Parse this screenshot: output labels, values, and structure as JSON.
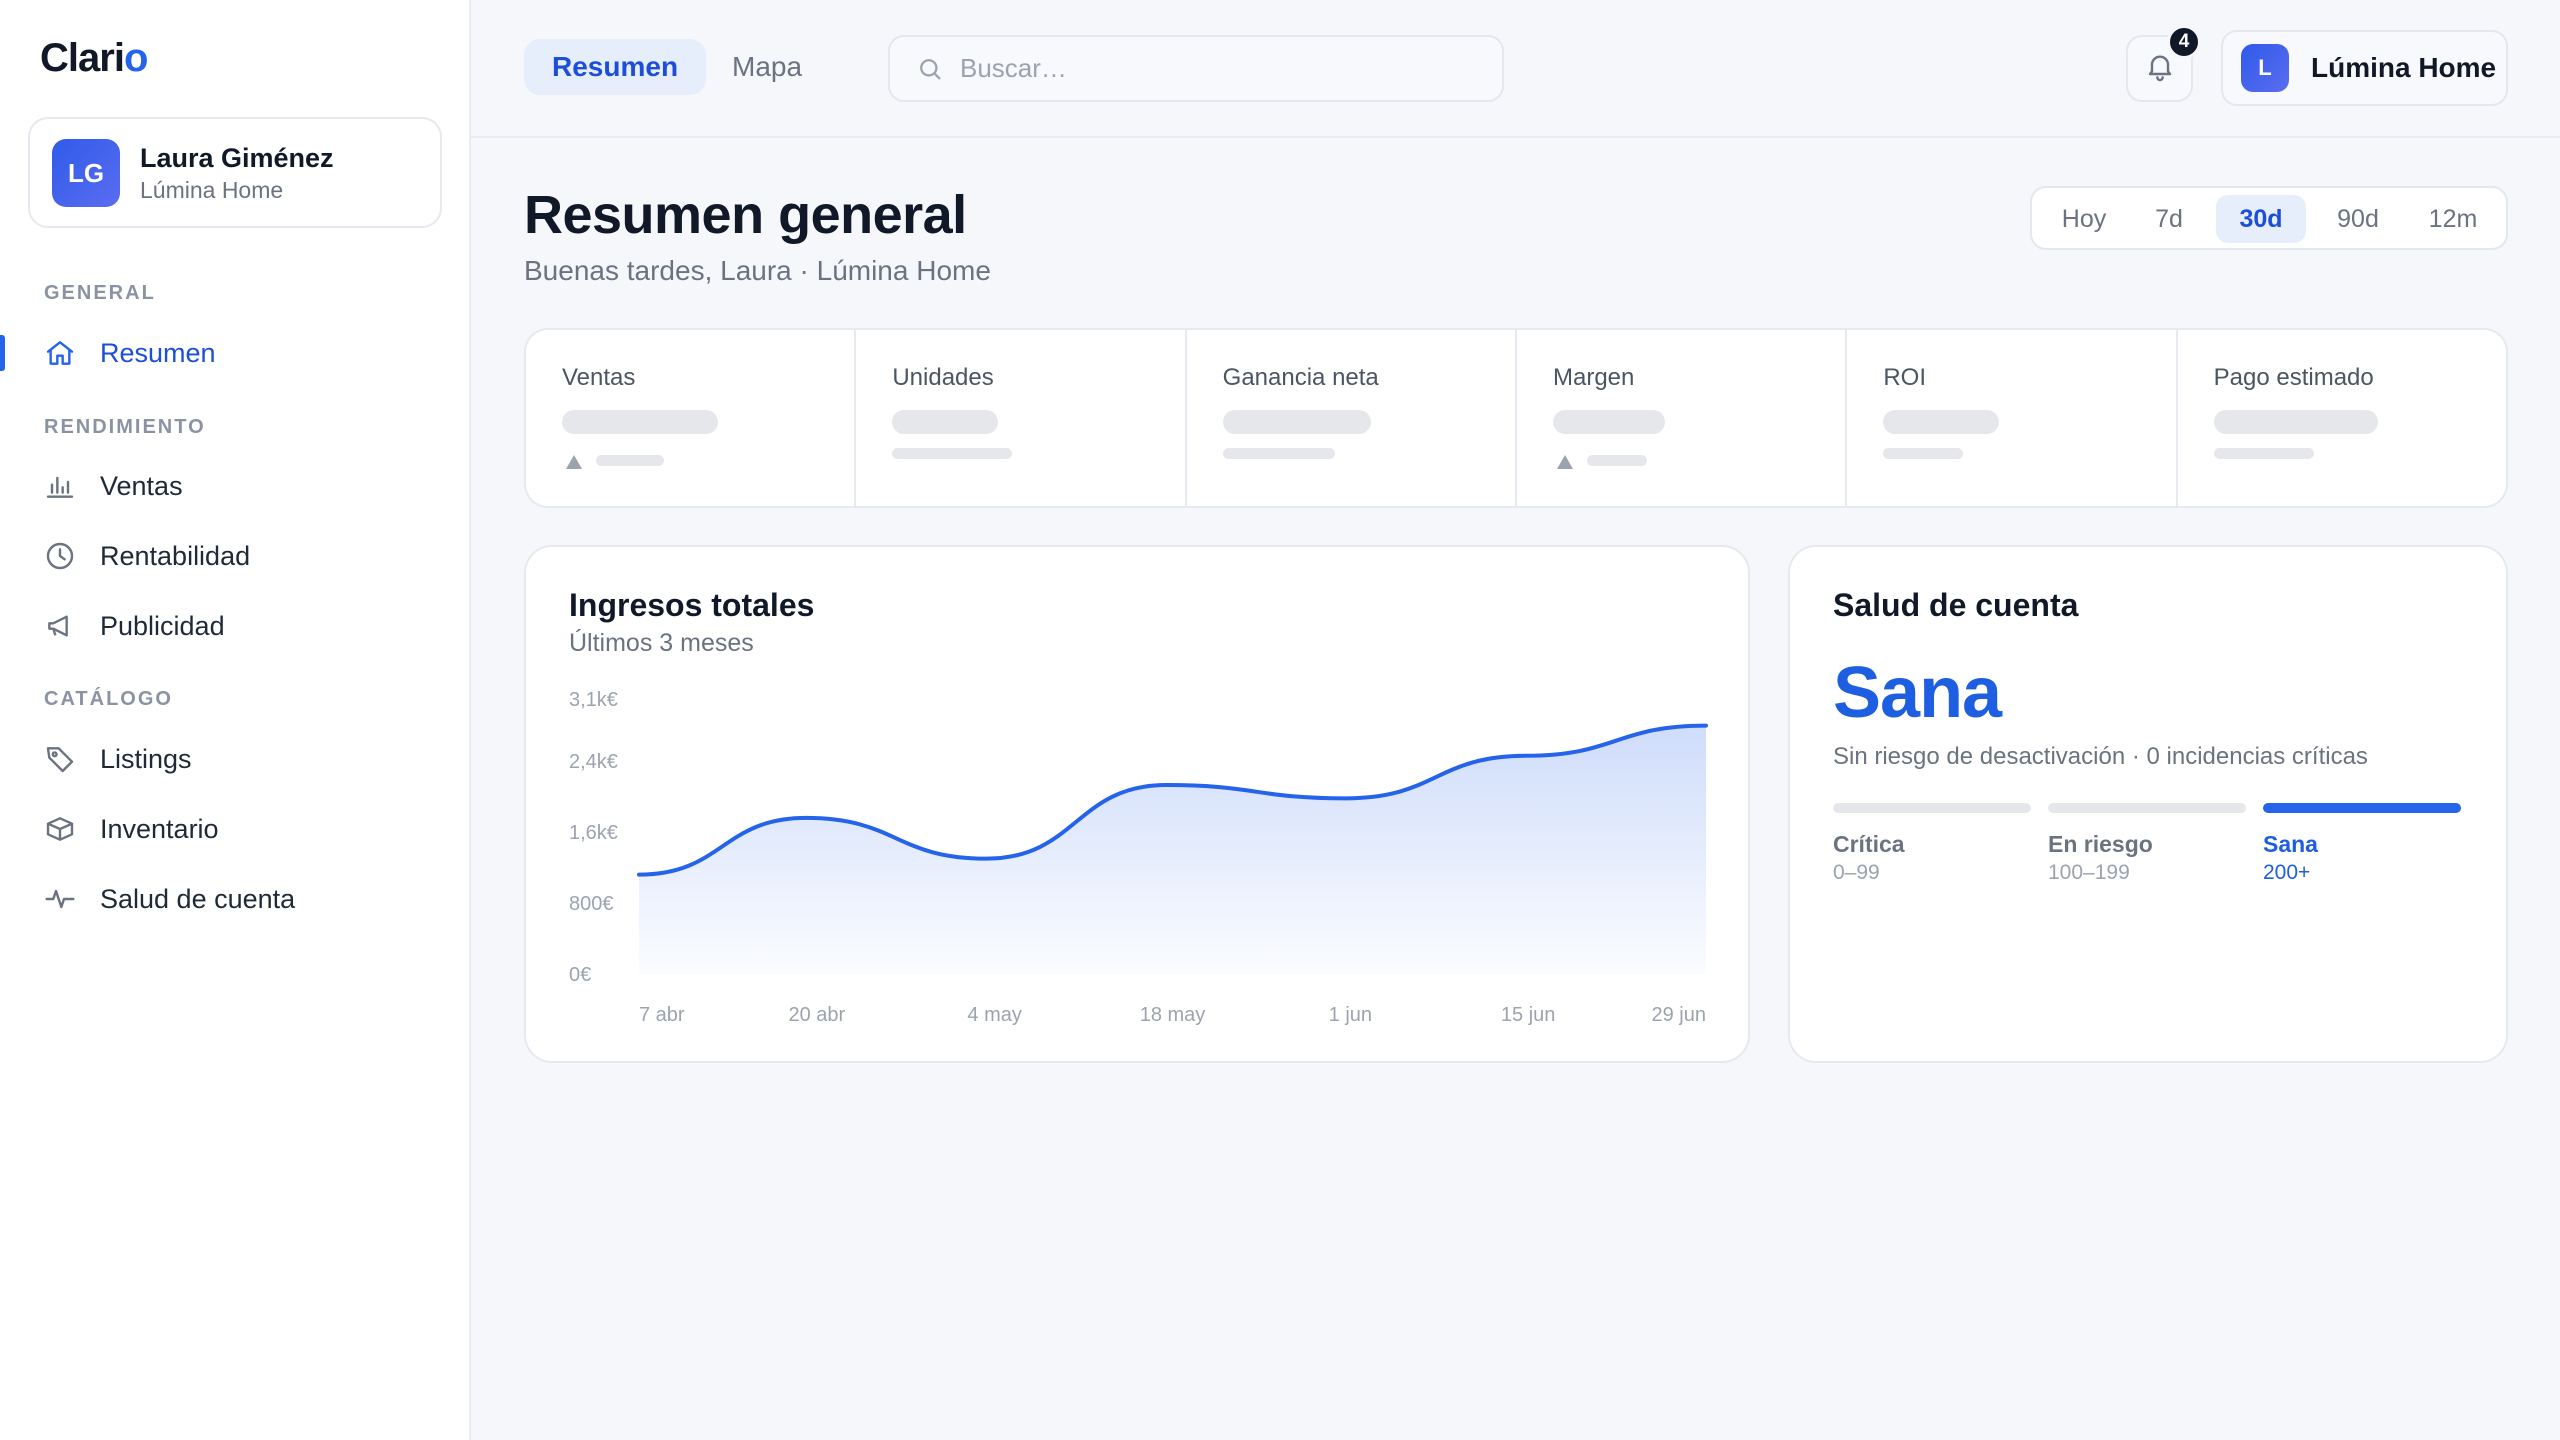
{
  "app": {
    "logo_main": "Clari",
    "logo_accent": "o"
  },
  "user": {
    "initials": "LG",
    "name": "Laura Giménez",
    "org": "Lúmina Home"
  },
  "sidebar": {
    "sections": [
      {
        "title": "GENERAL",
        "items": [
          {
            "label": "Resumen",
            "icon": "home-icon",
            "active": true
          }
        ]
      },
      {
        "title": "RENDIMIENTO",
        "items": [
          {
            "label": "Ventas",
            "icon": "bar-chart-icon"
          },
          {
            "label": "Rentabilidad",
            "icon": "clock-icon"
          },
          {
            "label": "Publicidad",
            "icon": "megaphone-icon"
          }
        ]
      },
      {
        "title": "CATÁLOGO",
        "items": [
          {
            "label": "Listings",
            "icon": "tag-icon"
          },
          {
            "label": "Inventario",
            "icon": "box-icon"
          },
          {
            "label": "Salud de cuenta",
            "icon": "pulse-icon"
          }
        ]
      }
    ]
  },
  "topbar": {
    "tabs": [
      {
        "label": "Resumen",
        "active": true
      },
      {
        "label": "Mapa",
        "active": false
      }
    ],
    "search_placeholder": "Buscar…",
    "notifications_count": "4",
    "account": {
      "initial": "L",
      "name": "Lúmina Home"
    }
  },
  "header": {
    "title": "Resumen general",
    "subtitle": "Buenas tardes, Laura · Lúmina Home",
    "ranges": [
      "Hoy",
      "7d",
      "30d",
      "90d",
      "12m"
    ],
    "active_range": "30d"
  },
  "kpis": [
    {
      "label": "Ventas",
      "trend_icon": true
    },
    {
      "label": "Unidades",
      "trend_icon": false
    },
    {
      "label": "Ganancia neta",
      "trend_icon": false
    },
    {
      "label": "Margen",
      "trend_icon": true
    },
    {
      "label": "ROI",
      "trend_icon": false
    },
    {
      "label": "Pago estimado",
      "trend_icon": false
    }
  ],
  "revenue": {
    "title": "Ingresos totales",
    "subtitle": "Últimos 3 meses",
    "chart_data": {
      "type": "area",
      "title": "Ingresos totales",
      "subtitle": "Últimos 3 meses",
      "x_ticks": [
        "7 abr",
        "20 abr",
        "4 may",
        "18 may",
        "1 jun",
        "15 jun",
        "29 jun"
      ],
      "y_ticks": [
        "0€",
        "800€",
        "1,6k€",
        "2,4k€",
        "3,1k€"
      ],
      "y_tick_values": [
        0,
        800,
        1600,
        2400,
        3100
      ],
      "ylim": [
        0,
        3100
      ],
      "x": [
        0,
        13,
        27,
        41,
        55,
        69,
        83
      ],
      "values": [
        1120,
        1760,
        1300,
        2130,
        1980,
        2460,
        2800
      ],
      "color": "#2563eb",
      "grid": false
    }
  },
  "health": {
    "title": "Salud de cuenta",
    "state": "Sana",
    "description": "Sin riesgo de desactivación · 0 incidencias críticas",
    "tiers": [
      {
        "name": "Crítica",
        "range": "0–99",
        "active": false
      },
      {
        "name": "En riesgo",
        "range": "100–199",
        "active": false
      },
      {
        "name": "Sana",
        "range": "200+",
        "active": true
      }
    ],
    "accent": "#1d5fe0"
  }
}
